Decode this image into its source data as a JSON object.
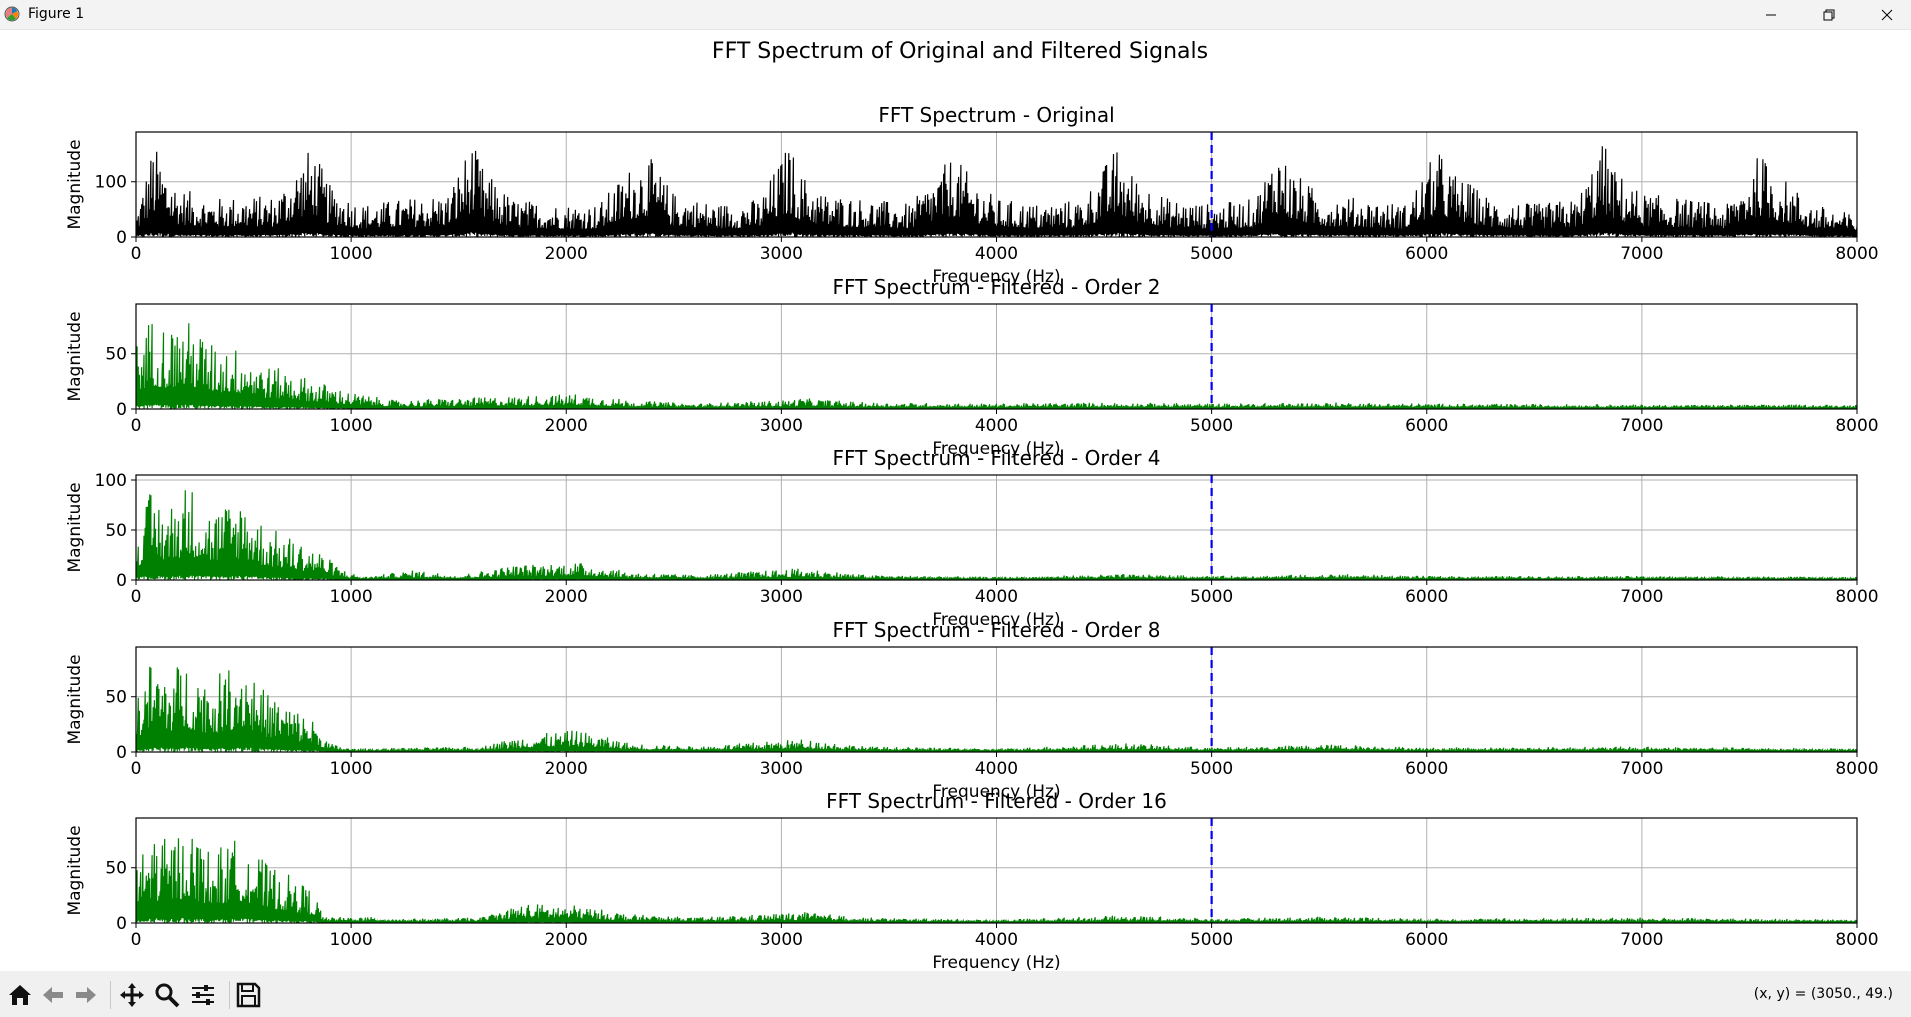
{
  "window": {
    "title": "Figure 1"
  },
  "toolbar": {
    "buttons": [
      {
        "name": "home-button",
        "icon": "home-icon"
      },
      {
        "name": "back-button",
        "icon": "arrow-left-icon"
      },
      {
        "name": "forward-button",
        "icon": "arrow-right-icon"
      },
      {
        "name": "pan-button",
        "icon": "move-icon"
      },
      {
        "name": "zoom-button",
        "icon": "magnifier-icon"
      },
      {
        "name": "configure-subplots-button",
        "icon": "sliders-icon"
      },
      {
        "name": "save-button",
        "icon": "floppy-disk-icon"
      }
    ],
    "coordinates": "(x, y) = (3050., 49.)"
  },
  "figure": {
    "suptitle": "FFT Spectrum of Original and Filtered Signals"
  },
  "chart_data": [
    {
      "type": "line",
      "title": "FFT Spectrum - Original",
      "xlabel": "Frequency (Hz)",
      "ylabel": "Magnitude",
      "xlim": [
        0,
        8000
      ],
      "ylim": [
        0,
        190
      ],
      "xticks": [
        0,
        1000,
        2000,
        3000,
        4000,
        5000,
        6000,
        7000,
        8000
      ],
      "yticks": [
        0,
        100
      ],
      "grid": true,
      "line_color": "#000000",
      "cutoff_line": {
        "x": 5000,
        "style": "dashed",
        "color": "#0000ff"
      },
      "envelope": {
        "x": [
          0,
          80,
          200,
          350,
          500,
          650,
          780,
          820,
          900,
          1050,
          1250,
          1450,
          1560,
          1620,
          1750,
          1950,
          2150,
          2300,
          2380,
          2500,
          2700,
          2900,
          3040,
          3080,
          3200,
          3400,
          3600,
          3800,
          3860,
          4000,
          4200,
          4400,
          4560,
          4620,
          4800,
          5000,
          5200,
          5310,
          5380,
          5500,
          5700,
          5900,
          6050,
          6120,
          6300,
          6500,
          6700,
          6820,
          6880,
          7000,
          7200,
          7400,
          7550,
          7620,
          7800,
          8000
        ],
        "y": [
          40,
          170,
          90,
          70,
          75,
          75,
          150,
          165,
          95,
          60,
          70,
          80,
          175,
          120,
          70,
          60,
          60,
          130,
          150,
          80,
          60,
          70,
          175,
          120,
          80,
          70,
          60,
          150,
          120,
          70,
          60,
          70,
          165,
          120,
          70,
          60,
          70,
          170,
          120,
          80,
          70,
          60,
          160,
          120,
          70,
          60,
          70,
          175,
          120,
          80,
          70,
          60,
          155,
          120,
          60,
          40
        ]
      }
    },
    {
      "type": "line",
      "title": "FFT Spectrum - Filtered - Order 2",
      "xlabel": "Frequency (Hz)",
      "ylabel": "Magnitude",
      "xlim": [
        0,
        8000
      ],
      "ylim": [
        0,
        95
      ],
      "xticks": [
        0,
        1000,
        2000,
        3000,
        4000,
        5000,
        6000,
        7000,
        8000
      ],
      "yticks": [
        0,
        50
      ],
      "grid": true,
      "line_color": "#008000",
      "cutoff_line": {
        "x": 5000,
        "style": "dashed",
        "color": "#0000ff"
      },
      "envelope": {
        "x": [
          0,
          70,
          150,
          250,
          350,
          500,
          600,
          700,
          850,
          1000,
          1200,
          1500,
          1800,
          2050,
          2300,
          2600,
          3000,
          3100,
          3400,
          4000,
          4500,
          5000,
          5600,
          6000,
          7000,
          8000
        ],
        "y": [
          60,
          85,
          75,
          80,
          60,
          55,
          40,
          35,
          25,
          15,
          8,
          10,
          12,
          14,
          8,
          5,
          8,
          10,
          6,
          5,
          6,
          5,
          6,
          5,
          4,
          4
        ]
      }
    },
    {
      "type": "line",
      "title": "FFT Spectrum - Filtered - Order 4",
      "xlabel": "Frequency (Hz)",
      "ylabel": "Magnitude",
      "xlim": [
        0,
        8000
      ],
      "ylim": [
        0,
        105
      ],
      "xticks": [
        0,
        1000,
        2000,
        3000,
        4000,
        5000,
        6000,
        7000,
        8000
      ],
      "yticks": [
        0,
        50,
        100
      ],
      "grid": true,
      "line_color": "#008000",
      "cutoff_line": {
        "x": 5000,
        "style": "dashed",
        "color": "#0000ff"
      },
      "envelope": {
        "x": [
          0,
          70,
          150,
          240,
          350,
          500,
          600,
          700,
          850,
          950,
          1050,
          1300,
          1500,
          1750,
          2050,
          2300,
          2600,
          3100,
          3400,
          4000,
          4600,
          5000,
          5600,
          6000,
          7000,
          8000
        ],
        "y": [
          50,
          90,
          75,
          100,
          70,
          85,
          55,
          45,
          30,
          12,
          3,
          10,
          5,
          15,
          18,
          8,
          5,
          12,
          5,
          3,
          6,
          4,
          6,
          4,
          4,
          3
        ]
      }
    },
    {
      "type": "line",
      "title": "FFT Spectrum - Filtered - Order 8",
      "xlabel": "Frequency (Hz)",
      "ylabel": "Magnitude",
      "xlim": [
        0,
        8000
      ],
      "ylim": [
        0,
        95
      ],
      "xticks": [
        0,
        1000,
        2000,
        3000,
        4000,
        5000,
        6000,
        7000,
        8000
      ],
      "yticks": [
        0,
        50
      ],
      "grid": true,
      "line_color": "#008000",
      "cutoff_line": {
        "x": 5000,
        "style": "dashed",
        "color": "#0000ff"
      },
      "envelope": {
        "x": [
          0,
          70,
          150,
          240,
          350,
          500,
          600,
          700,
          820,
          900,
          1000,
          1300,
          1600,
          1800,
          2050,
          2300,
          2600,
          3100,
          3400,
          4000,
          4600,
          5000,
          5600,
          6000,
          7000,
          8000
        ],
        "y": [
          50,
          85,
          75,
          85,
          65,
          90,
          55,
          45,
          30,
          8,
          3,
          4,
          5,
          15,
          20,
          8,
          5,
          12,
          5,
          3,
          8,
          4,
          7,
          4,
          5,
          3
        ]
      }
    },
    {
      "type": "line",
      "title": "FFT Spectrum - Filtered - Order 16",
      "xlabel": "Frequency (Hz)",
      "ylabel": "Magnitude",
      "xlim": [
        0,
        8000
      ],
      "ylim": [
        0,
        95
      ],
      "xticks": [
        0,
        1000,
        2000,
        3000,
        4000,
        5000,
        6000,
        7000,
        8000
      ],
      "yticks": [
        0,
        50
      ],
      "grid": true,
      "line_color": "#008000",
      "cutoff_line": {
        "x": 5000,
        "style": "dashed",
        "color": "#0000ff"
      },
      "envelope": {
        "x": [
          0,
          70,
          150,
          240,
          350,
          500,
          600,
          700,
          820,
          880,
          1000,
          1300,
          1600,
          1800,
          2050,
          2300,
          2600,
          3100,
          3400,
          4000,
          4600,
          5000,
          5600,
          6000,
          7000,
          8000
        ],
        "y": [
          50,
          85,
          75,
          90,
          65,
          80,
          55,
          45,
          30,
          5,
          6,
          4,
          5,
          18,
          16,
          8,
          5,
          10,
          5,
          3,
          7,
          4,
          6,
          4,
          5,
          3
        ]
      }
    }
  ]
}
